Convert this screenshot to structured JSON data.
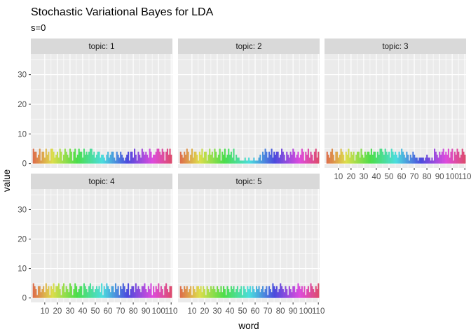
{
  "chart_data": {
    "type": "bar",
    "title": "Stochastic Variational Bayes for LDA",
    "subtitle": "s=0",
    "xlabel": "word",
    "ylabel": "value",
    "x_range": [
      1,
      110
    ],
    "x_ticks": [
      10,
      20,
      30,
      40,
      50,
      60,
      70,
      80,
      90,
      100,
      110
    ],
    "x_tick_labels": [
      "10",
      "20",
      "30",
      "40",
      "50",
      "60",
      "70",
      "80",
      "90",
      "100",
      "110"
    ],
    "ylim": [
      -1.5,
      37
    ],
    "y_ticks": [
      0,
      10,
      20,
      30
    ],
    "y_tick_labels": [
      "0",
      "10",
      "20",
      "30"
    ],
    "grid": true,
    "legend": "none",
    "fill": "by word (hue gradient)",
    "colors": {
      "panel_background": "#ebebeb",
      "strip_background": "#d9d9d9",
      "grid": "#ffffff"
    },
    "facets": [
      {
        "label": "topic: 1",
        "values": [
          5,
          4,
          4,
          2,
          3,
          5,
          1,
          4,
          4,
          2,
          5,
          3,
          4,
          1,
          5,
          5,
          4,
          2,
          3,
          4,
          2,
          5,
          4,
          1,
          3,
          5,
          4,
          3,
          2,
          5,
          4,
          1,
          4,
          5,
          2,
          3,
          5,
          4,
          4,
          2,
          5,
          3,
          4,
          3,
          4,
          5,
          5,
          3,
          4,
          2,
          3,
          4,
          4,
          2,
          3,
          3,
          2,
          1,
          3,
          4,
          2,
          3,
          4,
          4,
          2,
          1,
          4,
          3,
          2,
          4,
          3,
          2,
          1,
          2,
          3,
          4,
          1,
          4,
          4,
          2,
          5,
          3,
          1,
          4,
          3,
          2,
          5,
          4,
          3,
          4,
          3,
          2,
          5,
          4,
          2,
          3,
          3,
          4,
          5,
          5,
          4,
          3,
          5,
          4,
          1,
          4,
          5,
          3,
          5,
          3
        ]
      },
      {
        "label": "topic: 2",
        "values": [
          4,
          3,
          2,
          4,
          3,
          5,
          4,
          1,
          3,
          5,
          2,
          4,
          4,
          3,
          1,
          4,
          3,
          5,
          2,
          4,
          4,
          1,
          3,
          5,
          3,
          4,
          2,
          5,
          4,
          2,
          3,
          5,
          1,
          4,
          3,
          5,
          2,
          3,
          5,
          3,
          4,
          2,
          5,
          1,
          3,
          2,
          2,
          1,
          1,
          1,
          1,
          2,
          1,
          1,
          2,
          1,
          1,
          1,
          2,
          1,
          1,
          1,
          2,
          3,
          1,
          4,
          3,
          5,
          4,
          2,
          4,
          3,
          5,
          2,
          4,
          3,
          4,
          4,
          2,
          3,
          5,
          4,
          3,
          1,
          4,
          3,
          2,
          4,
          3,
          5,
          4,
          2,
          3,
          4,
          2,
          3,
          5,
          4,
          1,
          4,
          3,
          5,
          2,
          4,
          3,
          1,
          4,
          5,
          2,
          4
        ]
      },
      {
        "label": "topic: 3",
        "values": [
          4,
          3,
          2,
          4,
          5,
          3,
          1,
          4,
          4,
          2,
          3,
          5,
          4,
          3,
          1,
          4,
          3,
          5,
          2,
          4,
          3,
          4,
          1,
          3,
          4,
          4,
          2,
          5,
          3,
          2,
          4,
          3,
          4,
          4,
          3,
          5,
          3,
          4,
          4,
          2,
          4,
          3,
          5,
          5,
          4,
          3,
          5,
          4,
          3,
          4,
          2,
          5,
          4,
          3,
          4,
          3,
          2,
          4,
          3,
          5,
          4,
          3,
          2,
          4,
          3,
          1,
          3,
          2,
          4,
          3,
          2,
          2,
          1,
          2,
          2,
          2,
          2,
          1,
          2,
          3,
          2,
          2,
          1,
          2,
          1,
          5,
          4,
          3,
          2,
          4,
          3,
          4,
          5,
          3,
          4,
          3,
          5,
          2,
          4,
          5,
          1,
          4,
          3,
          5,
          4,
          2,
          3,
          5,
          4,
          3
        ]
      },
      {
        "label": "topic: 4",
        "values": [
          5,
          4,
          3,
          1,
          4,
          4,
          2,
          3,
          4,
          2,
          5,
          3,
          4,
          1,
          4,
          3,
          5,
          2,
          4,
          4,
          5,
          3,
          1,
          4,
          5,
          2,
          4,
          3,
          2,
          5,
          4,
          1,
          3,
          5,
          4,
          2,
          3,
          4,
          4,
          1,
          5,
          4,
          3,
          2,
          4,
          5,
          3,
          4,
          2,
          3,
          4,
          3,
          4,
          2,
          5,
          1,
          4,
          3,
          5,
          4,
          3,
          2,
          4,
          4,
          2,
          5,
          3,
          4,
          1,
          4,
          3,
          5,
          4,
          2,
          3,
          5,
          1,
          3,
          4,
          4,
          2,
          5,
          3,
          4,
          3,
          2,
          4,
          4,
          5,
          3,
          2,
          4,
          3,
          5,
          1,
          4,
          2,
          4,
          3,
          5,
          2,
          4,
          3,
          1,
          4,
          5,
          3,
          2,
          4,
          4
        ]
      },
      {
        "label": "topic: 5",
        "values": [
          4,
          3,
          2,
          4,
          3,
          4,
          2,
          3,
          4,
          1,
          4,
          3,
          2,
          4,
          4,
          3,
          4,
          2,
          4,
          3,
          1,
          4,
          3,
          2,
          4,
          3,
          4,
          3,
          2,
          4,
          3,
          2,
          4,
          2,
          4,
          3,
          1,
          4,
          3,
          2,
          4,
          3,
          4,
          2,
          3,
          4,
          2,
          3,
          4,
          1,
          4,
          3,
          2,
          4,
          3,
          4,
          2,
          4,
          3,
          2,
          4,
          3,
          4,
          2,
          3,
          4,
          2,
          3,
          4,
          1,
          4,
          3,
          2,
          5,
          4,
          3,
          4,
          2,
          3,
          5,
          4,
          3,
          2,
          4,
          3,
          1,
          4,
          3,
          2,
          4,
          4,
          2,
          3,
          5,
          4,
          3,
          4,
          2,
          4,
          1,
          3,
          4,
          2,
          5,
          4,
          3,
          2,
          4,
          3,
          5
        ]
      }
    ]
  }
}
